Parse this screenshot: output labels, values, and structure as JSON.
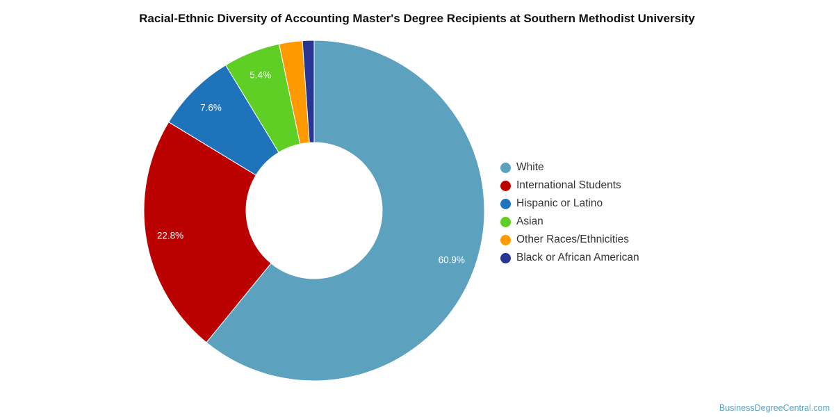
{
  "chart_data": {
    "type": "pie",
    "variant": "donut",
    "title": "Racial-Ethnic Diversity of Accounting Master's Degree Recipients at Southern Methodist University",
    "categories": [
      "White",
      "International Students",
      "Hispanic or Latino",
      "Asian",
      "Other Races/Ethnicities",
      "Black or African American"
    ],
    "values": [
      60.9,
      22.8,
      7.6,
      5.4,
      2.2,
      1.1
    ],
    "data_labels": [
      "60.9%",
      "22.8%",
      "7.6%",
      "5.4%",
      "",
      ""
    ],
    "colors": [
      "#5ca2bf",
      "#bb0000",
      "#1f73bb",
      "#5fcf26",
      "#ff9900",
      "#283593"
    ],
    "legend_position": "right",
    "start": "top",
    "direction": "clockwise"
  },
  "credit": "BusinessDegreeCentral.com"
}
